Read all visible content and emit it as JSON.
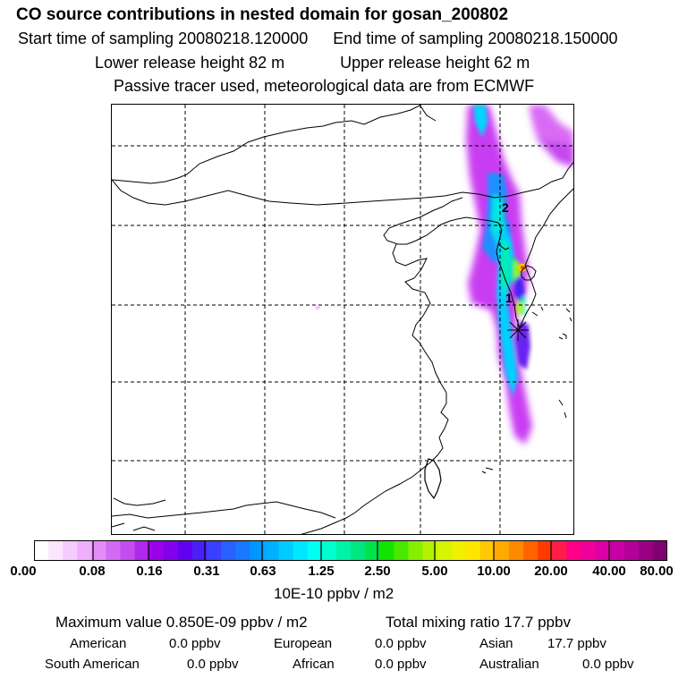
{
  "header": {
    "title": "CO  source contributions in nested domain for gosan_200802",
    "start_sampling": "Start time of sampling 20080218.120000",
    "end_sampling": "End time of sampling 20080218.150000",
    "lower_release": "Lower release height   82 m",
    "upper_release": "Upper release height   62 m",
    "tracer_info": "Passive tracer used, meteorological data are from ECMWF"
  },
  "map": {
    "markers": [
      {
        "label": "1"
      },
      {
        "label": "2"
      }
    ],
    "receptor_symbol": "asterisk-icon"
  },
  "colorbar": {
    "colors": [
      "#ffffff",
      "#fbe6ff",
      "#f5ccff",
      "#efb0fb",
      "#e48cf7",
      "#d36af2",
      "#c54cef",
      "#b028ec",
      "#9a00ea",
      "#8200ec",
      "#6400f0",
      "#4a20f5",
      "#3a40ff",
      "#2a60ff",
      "#1878ff",
      "#0096ff",
      "#00b0ff",
      "#00ccff",
      "#00e6ff",
      "#00fff0",
      "#00ffd0",
      "#00f2a8",
      "#00e680",
      "#00e24c",
      "#10e400",
      "#48e800",
      "#86ee00",
      "#b4f200",
      "#d8f400",
      "#f0f000",
      "#ffe600",
      "#ffc800",
      "#ffaa00",
      "#ff8a00",
      "#ff6400",
      "#ff3a00",
      "#ff1c48",
      "#ff0088",
      "#f0009a",
      "#dc00a6",
      "#c800a6",
      "#b40096",
      "#9a0084",
      "#800070"
    ],
    "tick_labels": [
      "0.00",
      "0.08",
      "0.16",
      "0.31",
      "0.63",
      "1.25",
      "2.50",
      "5.00",
      "10.00",
      "20.00",
      "40.00",
      "80.00"
    ],
    "units": "10E-10 ppbv / m2"
  },
  "stats": {
    "maximum": "Maximum value  0.850E-09 ppbv / m2",
    "total": "Total mixing ratio       17.7 ppbv",
    "american_label": "American",
    "american_value": "0.0 ppbv",
    "european_label": "European",
    "european_value": "0.0 ppbv",
    "asian_label": "Asian",
    "asian_value": "17.7 ppbv",
    "south_american_label": "South American",
    "south_american_value": "0.0 ppbv",
    "african_label": "African",
    "african_value": "0.0 ppbv",
    "australian_label": "Australian",
    "australian_value": "0.0 ppbv"
  }
}
